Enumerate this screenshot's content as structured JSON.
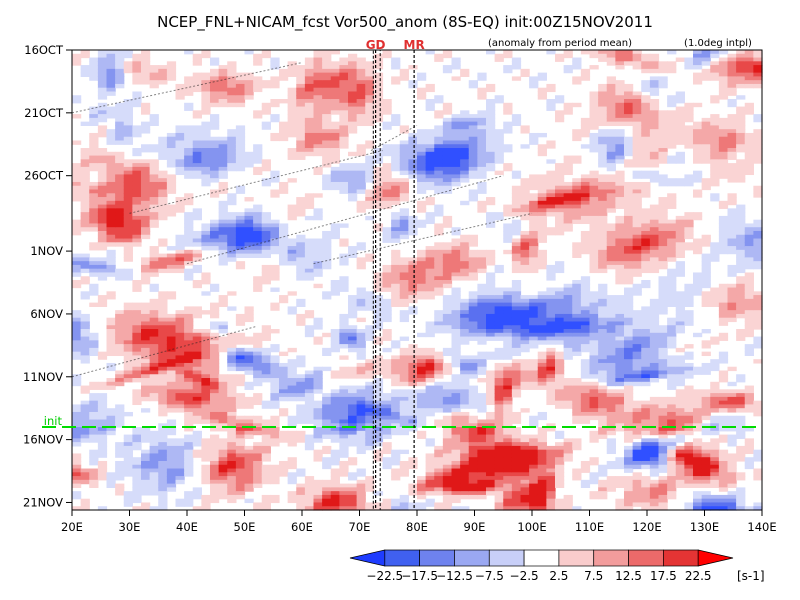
{
  "chart_data": {
    "type": "heatmap",
    "title": "NCEP_FNL+NICAM_fcst Vor500_anom (8S-EQ) init:00Z15NOV2011",
    "subtitle_left": "(anomaly from period mean)",
    "subtitle_right": "(1.0deg intpl)",
    "x_ticks": [
      "20E",
      "30E",
      "40E",
      "50E",
      "60E",
      "70E",
      "80E",
      "90E",
      "100E",
      "110E",
      "120E",
      "130E",
      "140E"
    ],
    "x_values": [
      20,
      30,
      40,
      50,
      60,
      70,
      80,
      90,
      100,
      110,
      120,
      130,
      140
    ],
    "xlim": [
      20,
      140
    ],
    "y_ticks": [
      "16OCT",
      "21OCT",
      "26OCT",
      "1NOV",
      "6NOV",
      "11NOV",
      "16NOV",
      "21NOV"
    ],
    "y_values": [
      0,
      5,
      10,
      16,
      21,
      26,
      31,
      36
    ],
    "ylim": [
      0,
      36.6
    ],
    "init_line": {
      "label": "init",
      "y": 30
    },
    "markers": [
      {
        "label": "GD",
        "lon": 72.8
      },
      {
        "label": "MR",
        "lon": 79.5
      }
    ],
    "marker_band": [
      72.4,
      73.6
    ],
    "colorbar": {
      "levels": [
        "−22.5",
        "−17.5",
        "−12.5",
        "−7.5",
        "−2.5",
        "2.5",
        "7.5",
        "12.5",
        "17.5",
        "22.5"
      ],
      "colors": [
        "#1e3cff",
        "#4060f0",
        "#6e82ee",
        "#9aa8f2",
        "#c8cff8",
        "#ffffff",
        "#f9cccc",
        "#f29c9c",
        "#ec6a6a",
        "#e43434",
        "#ff0000"
      ],
      "unit": "[s-1]"
    },
    "bin_colors": [
      "#3050ff",
      "#5a70f0",
      "#8494f0",
      "#aeb8f4",
      "#d6dcfa",
      "#ffffff",
      "#fad4d4",
      "#f4a8a8",
      "#ee7878",
      "#e84848",
      "#e01818"
    ]
  }
}
